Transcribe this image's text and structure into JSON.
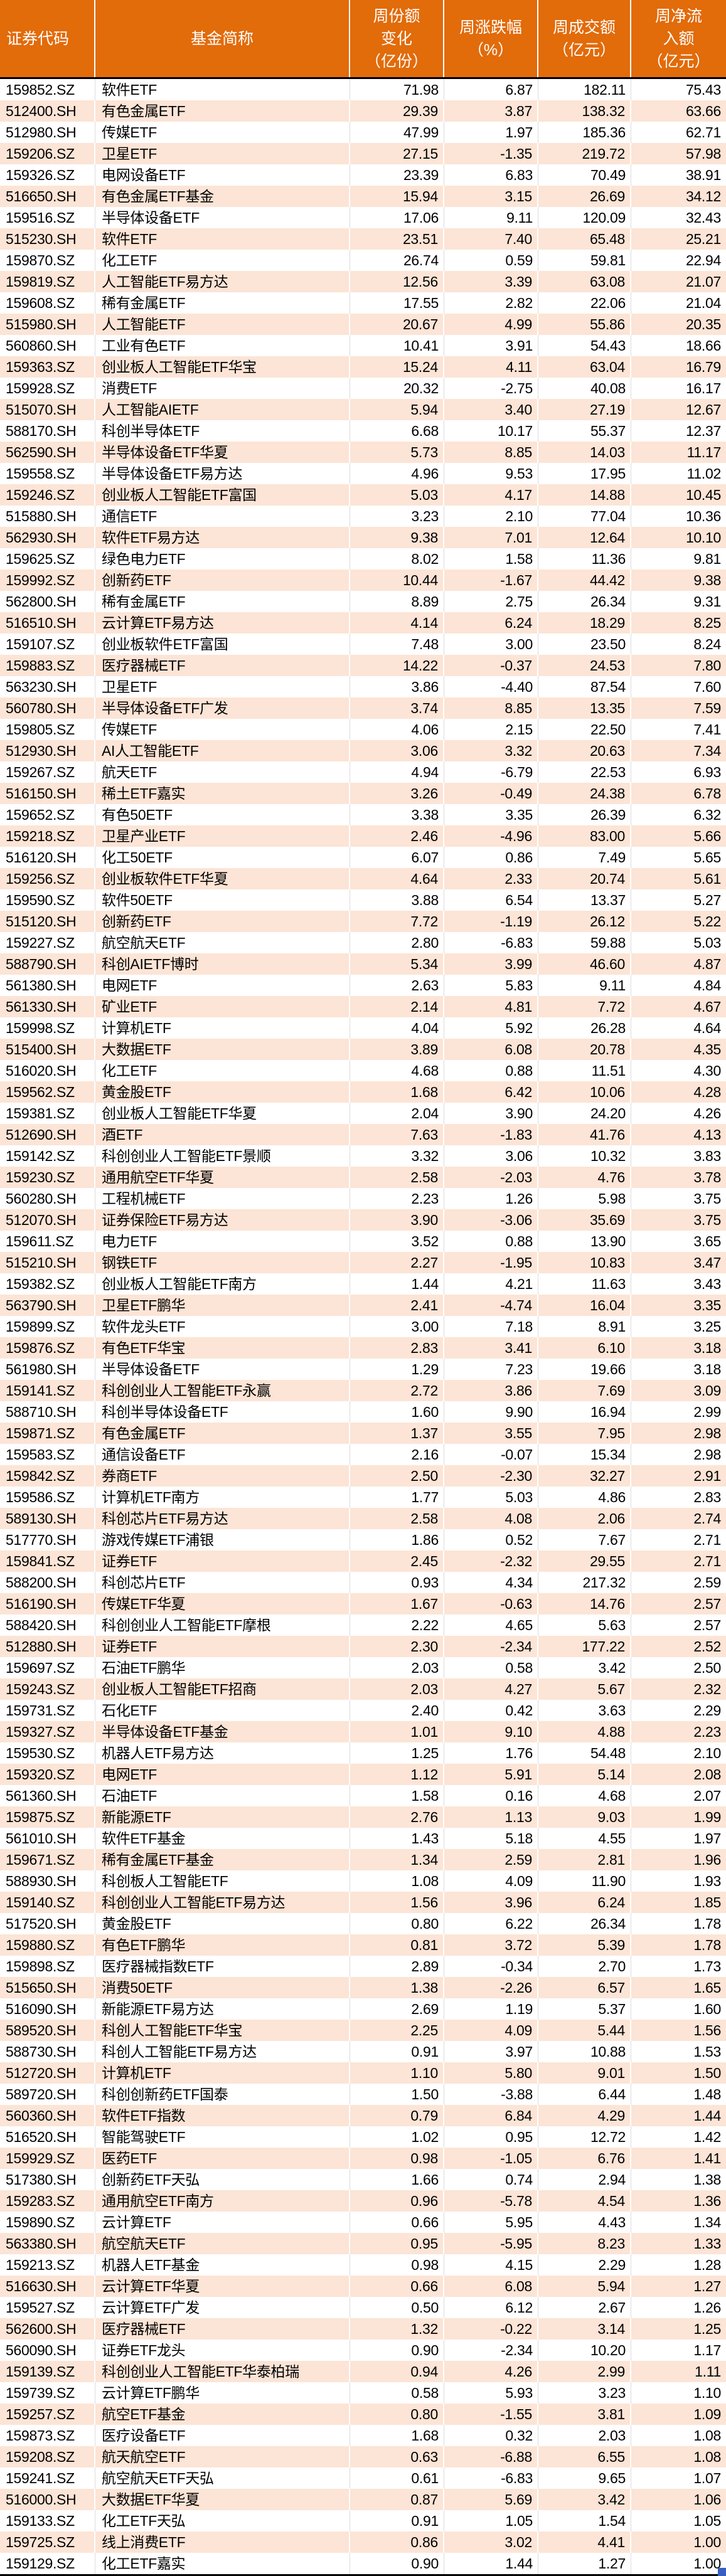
{
  "colors": {
    "header_bg": "#E26B0A",
    "header_text": "#FFFFFF",
    "row_plain_bg": "#FFFFFF",
    "row_stripe_bg": "#FCE4D6",
    "body_text": "#000000",
    "divider": "#000000",
    "fill_handle": "#3B5FC0"
  },
  "table": {
    "columns": [
      {
        "key": "code",
        "label": "证券代码"
      },
      {
        "key": "name",
        "label": "基金简称"
      },
      {
        "key": "share_change",
        "label": "周份额\n变化\n（亿份）"
      },
      {
        "key": "pct_change",
        "label": "周涨跌幅\n（%）"
      },
      {
        "key": "turnover",
        "label": "周成交额\n（亿元）"
      },
      {
        "key": "net_inflow",
        "label": "周净流\n入额\n（亿元）"
      }
    ],
    "rows": [
      [
        "159852.SZ",
        "软件ETF",
        "71.98",
        "6.87",
        "182.11",
        "75.43"
      ],
      [
        "512400.SH",
        "有色金属ETF",
        "29.39",
        "3.87",
        "138.32",
        "63.66"
      ],
      [
        "512980.SH",
        "传媒ETF",
        "47.99",
        "1.97",
        "185.36",
        "62.71"
      ],
      [
        "159206.SZ",
        "卫星ETF",
        "27.15",
        "-1.35",
        "219.72",
        "57.98"
      ],
      [
        "159326.SZ",
        "电网设备ETF",
        "23.39",
        "6.83",
        "70.49",
        "38.91"
      ],
      [
        "516650.SH",
        "有色金属ETF基金",
        "15.94",
        "3.15",
        "26.69",
        "34.12"
      ],
      [
        "159516.SZ",
        "半导体设备ETF",
        "17.06",
        "9.11",
        "120.09",
        "32.43"
      ],
      [
        "515230.SH",
        "软件ETF",
        "23.51",
        "7.40",
        "65.48",
        "25.21"
      ],
      [
        "159870.SZ",
        "化工ETF",
        "26.74",
        "0.59",
        "59.81",
        "22.94"
      ],
      [
        "159819.SZ",
        "人工智能ETF易方达",
        "12.56",
        "3.39",
        "63.08",
        "21.07"
      ],
      [
        "159608.SZ",
        "稀有金属ETF",
        "17.55",
        "2.82",
        "22.06",
        "21.04"
      ],
      [
        "515980.SH",
        "人工智能ETF",
        "20.67",
        "4.99",
        "55.86",
        "20.35"
      ],
      [
        "560860.SH",
        "工业有色ETF",
        "10.41",
        "3.91",
        "54.43",
        "18.66"
      ],
      [
        "159363.SZ",
        "创业板人工智能ETF华宝",
        "15.24",
        "4.11",
        "63.04",
        "16.79"
      ],
      [
        "159928.SZ",
        "消费ETF",
        "20.32",
        "-2.75",
        "40.08",
        "16.17"
      ],
      [
        "515070.SH",
        "人工智能AIETF",
        "5.94",
        "3.40",
        "27.19",
        "12.67"
      ],
      [
        "588170.SH",
        "科创半导体ETF",
        "6.68",
        "10.17",
        "55.37",
        "12.37"
      ],
      [
        "562590.SH",
        "半导体设备ETF华夏",
        "5.73",
        "8.85",
        "14.03",
        "11.17"
      ],
      [
        "159558.SZ",
        "半导体设备ETF易方达",
        "4.96",
        "9.53",
        "17.95",
        "11.02"
      ],
      [
        "159246.SZ",
        "创业板人工智能ETF富国",
        "5.03",
        "4.17",
        "14.88",
        "10.45"
      ],
      [
        "515880.SH",
        "通信ETF",
        "3.23",
        "2.10",
        "77.04",
        "10.36"
      ],
      [
        "562930.SH",
        "软件ETF易方达",
        "9.38",
        "7.01",
        "12.64",
        "10.10"
      ],
      [
        "159625.SZ",
        "绿色电力ETF",
        "8.02",
        "1.58",
        "11.36",
        "9.81"
      ],
      [
        "159992.SZ",
        "创新药ETF",
        "10.44",
        "-1.67",
        "44.42",
        "9.38"
      ],
      [
        "562800.SH",
        "稀有金属ETF",
        "8.89",
        "2.75",
        "26.34",
        "9.31"
      ],
      [
        "516510.SH",
        "云计算ETF易方达",
        "4.14",
        "6.24",
        "18.29",
        "8.25"
      ],
      [
        "159107.SZ",
        "创业板软件ETF富国",
        "7.48",
        "3.00",
        "23.50",
        "8.24"
      ],
      [
        "159883.SZ",
        "医疗器械ETF",
        "14.22",
        "-0.37",
        "24.53",
        "7.80"
      ],
      [
        "563230.SH",
        "卫星ETF",
        "3.86",
        "-4.40",
        "87.54",
        "7.60"
      ],
      [
        "560780.SH",
        "半导体设备ETF广发",
        "3.74",
        "8.85",
        "13.35",
        "7.59"
      ],
      [
        "159805.SZ",
        "传媒ETF",
        "4.06",
        "2.15",
        "22.50",
        "7.41"
      ],
      [
        "512930.SH",
        "AI人工智能ETF",
        "3.06",
        "3.32",
        "20.63",
        "7.34"
      ],
      [
        "159267.SZ",
        "航天ETF",
        "4.94",
        "-6.79",
        "22.53",
        "6.93"
      ],
      [
        "516150.SH",
        "稀土ETF嘉实",
        "3.26",
        "-0.49",
        "24.38",
        "6.78"
      ],
      [
        "159652.SZ",
        "有色50ETF",
        "3.38",
        "3.35",
        "26.39",
        "6.32"
      ],
      [
        "159218.SZ",
        "卫星产业ETF",
        "2.46",
        "-4.96",
        "83.00",
        "5.66"
      ],
      [
        "516120.SH",
        "化工50ETF",
        "6.07",
        "0.86",
        "7.49",
        "5.65"
      ],
      [
        "159256.SZ",
        "创业板软件ETF华夏",
        "4.64",
        "2.33",
        "20.74",
        "5.61"
      ],
      [
        "159590.SZ",
        "软件50ETF",
        "3.88",
        "6.54",
        "13.37",
        "5.27"
      ],
      [
        "515120.SH",
        "创新药ETF",
        "7.72",
        "-1.19",
        "26.12",
        "5.22"
      ],
      [
        "159227.SZ",
        "航空航天ETF",
        "2.80",
        "-6.83",
        "59.88",
        "5.03"
      ],
      [
        "588790.SH",
        "科创AIETF博时",
        "5.34",
        "3.99",
        "46.60",
        "4.87"
      ],
      [
        "561380.SH",
        "电网ETF",
        "2.63",
        "5.83",
        "9.11",
        "4.84"
      ],
      [
        "561330.SH",
        "矿业ETF",
        "2.14",
        "4.81",
        "7.72",
        "4.67"
      ],
      [
        "159998.SZ",
        "计算机ETF",
        "4.04",
        "5.92",
        "26.28",
        "4.64"
      ],
      [
        "515400.SH",
        "大数据ETF",
        "3.89",
        "6.08",
        "20.78",
        "4.35"
      ],
      [
        "516020.SH",
        "化工ETF",
        "4.68",
        "0.88",
        "11.51",
        "4.30"
      ],
      [
        "159562.SZ",
        "黄金股ETF",
        "1.68",
        "6.42",
        "10.06",
        "4.28"
      ],
      [
        "159381.SZ",
        "创业板人工智能ETF华夏",
        "2.04",
        "3.90",
        "24.20",
        "4.26"
      ],
      [
        "512690.SH",
        "酒ETF",
        "7.63",
        "-1.83",
        "41.76",
        "4.13"
      ],
      [
        "159142.SZ",
        "科创创业人工智能ETF景顺",
        "3.32",
        "3.06",
        "10.32",
        "3.83"
      ],
      [
        "159230.SZ",
        "通用航空ETF华夏",
        "2.58",
        "-2.03",
        "4.76",
        "3.78"
      ],
      [
        "560280.SH",
        "工程机械ETF",
        "2.23",
        "1.26",
        "5.98",
        "3.75"
      ],
      [
        "512070.SH",
        "证券保险ETF易方达",
        "3.90",
        "-3.06",
        "35.69",
        "3.75"
      ],
      [
        "159611.SZ",
        "电力ETF",
        "3.52",
        "0.88",
        "13.90",
        "3.65"
      ],
      [
        "515210.SH",
        "钢铁ETF",
        "2.27",
        "-1.95",
        "10.83",
        "3.47"
      ],
      [
        "159382.SZ",
        "创业板人工智能ETF南方",
        "1.44",
        "4.21",
        "11.63",
        "3.43"
      ],
      [
        "563790.SH",
        "卫星ETF鹏华",
        "2.41",
        "-4.74",
        "16.04",
        "3.35"
      ],
      [
        "159899.SZ",
        "软件龙头ETF",
        "3.00",
        "7.18",
        "8.91",
        "3.25"
      ],
      [
        "159876.SZ",
        "有色ETF华宝",
        "2.83",
        "3.41",
        "6.10",
        "3.18"
      ],
      [
        "561980.SH",
        "半导体设备ETF",
        "1.29",
        "7.23",
        "19.66",
        "3.18"
      ],
      [
        "159141.SZ",
        "科创创业人工智能ETF永赢",
        "2.72",
        "3.86",
        "7.69",
        "3.09"
      ],
      [
        "588710.SH",
        "科创半导体设备ETF",
        "1.60",
        "9.90",
        "16.94",
        "2.99"
      ],
      [
        "159871.SZ",
        "有色金属ETF",
        "1.37",
        "3.55",
        "7.95",
        "2.98"
      ],
      [
        "159583.SZ",
        "通信设备ETF",
        "2.16",
        "-0.07",
        "15.34",
        "2.98"
      ],
      [
        "159842.SZ",
        "券商ETF",
        "2.50",
        "-2.30",
        "32.27",
        "2.91"
      ],
      [
        "159586.SZ",
        "计算机ETF南方",
        "1.77",
        "5.03",
        "4.86",
        "2.83"
      ],
      [
        "589130.SH",
        "科创芯片ETF易方达",
        "2.58",
        "4.08",
        "2.06",
        "2.74"
      ],
      [
        "517770.SH",
        "游戏传媒ETF浦银",
        "1.86",
        "0.52",
        "7.67",
        "2.71"
      ],
      [
        "159841.SZ",
        "证券ETF",
        "2.45",
        "-2.32",
        "29.55",
        "2.71"
      ],
      [
        "588200.SH",
        "科创芯片ETF",
        "0.93",
        "4.34",
        "217.32",
        "2.59"
      ],
      [
        "516190.SH",
        "传媒ETF华夏",
        "1.67",
        "-0.63",
        "14.76",
        "2.57"
      ],
      [
        "588420.SH",
        "科创创业人工智能ETF摩根",
        "2.22",
        "4.65",
        "5.63",
        "2.57"
      ],
      [
        "512880.SH",
        "证券ETF",
        "2.30",
        "-2.34",
        "177.22",
        "2.52"
      ],
      [
        "159697.SZ",
        "石油ETF鹏华",
        "2.03",
        "0.58",
        "3.42",
        "2.50"
      ],
      [
        "159243.SZ",
        "创业板人工智能ETF招商",
        "2.03",
        "4.27",
        "5.67",
        "2.32"
      ],
      [
        "159731.SZ",
        "石化ETF",
        "2.40",
        "0.42",
        "3.63",
        "2.29"
      ],
      [
        "159327.SZ",
        "半导体设备ETF基金",
        "1.01",
        "9.10",
        "4.88",
        "2.23"
      ],
      [
        "159530.SZ",
        "机器人ETF易方达",
        "1.25",
        "1.76",
        "54.48",
        "2.10"
      ],
      [
        "159320.SZ",
        "电网ETF",
        "1.12",
        "5.91",
        "5.14",
        "2.08"
      ],
      [
        "561360.SH",
        "石油ETF",
        "1.58",
        "0.16",
        "4.68",
        "2.07"
      ],
      [
        "159875.SZ",
        "新能源ETF",
        "2.76",
        "1.13",
        "9.03",
        "1.99"
      ],
      [
        "561010.SH",
        "软件ETF基金",
        "1.43",
        "5.18",
        "4.55",
        "1.97"
      ],
      [
        "159671.SZ",
        "稀有金属ETF基金",
        "1.34",
        "2.59",
        "2.81",
        "1.96"
      ],
      [
        "588930.SH",
        "科创板人工智能ETF",
        "1.08",
        "4.09",
        "11.90",
        "1.93"
      ],
      [
        "159140.SZ",
        "科创创业人工智能ETF易方达",
        "1.56",
        "3.96",
        "6.24",
        "1.85"
      ],
      [
        "517520.SH",
        "黄金股ETF",
        "0.80",
        "6.22",
        "26.34",
        "1.78"
      ],
      [
        "159880.SZ",
        "有色ETF鹏华",
        "0.81",
        "3.72",
        "5.39",
        "1.78"
      ],
      [
        "159898.SZ",
        "医疗器械指数ETF",
        "2.89",
        "-0.34",
        "2.70",
        "1.73"
      ],
      [
        "515650.SH",
        "消费50ETF",
        "1.38",
        "-2.26",
        "6.57",
        "1.65"
      ],
      [
        "516090.SH",
        "新能源ETF易方达",
        "2.69",
        "1.19",
        "5.37",
        "1.60"
      ],
      [
        "589520.SH",
        "科创人工智能ETF华宝",
        "2.25",
        "4.09",
        "5.44",
        "1.56"
      ],
      [
        "588730.SH",
        "科创人工智能ETF易方达",
        "0.91",
        "3.97",
        "10.88",
        "1.53"
      ],
      [
        "512720.SH",
        "计算机ETF",
        "1.10",
        "5.80",
        "9.01",
        "1.50"
      ],
      [
        "589720.SH",
        "科创创新药ETF国泰",
        "1.50",
        "-3.88",
        "6.44",
        "1.48"
      ],
      [
        "560360.SH",
        "软件ETF指数",
        "0.79",
        "6.84",
        "4.29",
        "1.44"
      ],
      [
        "516520.SH",
        "智能驾驶ETF",
        "1.02",
        "0.95",
        "12.72",
        "1.42"
      ],
      [
        "159929.SZ",
        "医药ETF",
        "0.98",
        "-1.05",
        "6.76",
        "1.41"
      ],
      [
        "517380.SH",
        "创新药ETF天弘",
        "1.66",
        "0.74",
        "2.94",
        "1.38"
      ],
      [
        "159283.SZ",
        "通用航空ETF南方",
        "0.96",
        "-5.78",
        "4.54",
        "1.36"
      ],
      [
        "159890.SZ",
        "云计算ETF",
        "0.66",
        "5.95",
        "4.43",
        "1.34"
      ],
      [
        "563380.SH",
        "航空航天ETF",
        "0.95",
        "-5.95",
        "8.23",
        "1.33"
      ],
      [
        "159213.SZ",
        "机器人ETF基金",
        "0.98",
        "4.15",
        "2.29",
        "1.28"
      ],
      [
        "516630.SH",
        "云计算ETF华夏",
        "0.66",
        "6.08",
        "5.94",
        "1.27"
      ],
      [
        "159527.SZ",
        "云计算ETF广发",
        "0.50",
        "6.12",
        "2.67",
        "1.26"
      ],
      [
        "562600.SH",
        "医疗器械ETF",
        "1.32",
        "-0.22",
        "3.14",
        "1.25"
      ],
      [
        "560090.SH",
        "证券ETF龙头",
        "0.90",
        "-2.34",
        "10.20",
        "1.17"
      ],
      [
        "159139.SZ",
        "科创创业人工智能ETF华泰柏瑞",
        "0.94",
        "4.26",
        "2.99",
        "1.11"
      ],
      [
        "159739.SZ",
        "云计算ETF鹏华",
        "0.58",
        "5.93",
        "3.23",
        "1.10"
      ],
      [
        "159257.SZ",
        "航空ETF基金",
        "0.80",
        "-1.55",
        "3.81",
        "1.09"
      ],
      [
        "159873.SZ",
        "医疗设备ETF",
        "1.68",
        "0.32",
        "2.03",
        "1.08"
      ],
      [
        "159208.SZ",
        "航天航空ETF",
        "0.63",
        "-6.88",
        "6.55",
        "1.08"
      ],
      [
        "159241.SZ",
        "航空航天ETF天弘",
        "0.61",
        "-6.83",
        "9.65",
        "1.07"
      ],
      [
        "516000.SH",
        "大数据ETF华夏",
        "0.87",
        "5.69",
        "3.42",
        "1.06"
      ],
      [
        "159133.SZ",
        "化工ETF天弘",
        "0.91",
        "1.05",
        "1.54",
        "1.05"
      ],
      [
        "159725.SZ",
        "线上消费ETF",
        "0.86",
        "3.02",
        "4.41",
        "1.00"
      ],
      [
        "159129.SZ",
        "化工ETF嘉实",
        "0.90",
        "1.44",
        "1.27",
        "1.00"
      ]
    ]
  }
}
